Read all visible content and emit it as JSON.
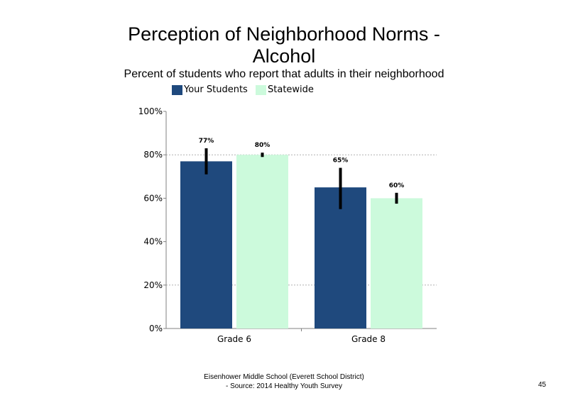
{
  "slide": {
    "title_line1": "Perception of Neighborhood Norms -",
    "title_line2": "Alcohol",
    "subtitle": "Percent of students who report that adults in their neighborhood",
    "footer_line1": "Eisenhower Middle School (Everett School District)",
    "footer_line2": "- Source: 2014 Healthy  Youth Survey",
    "page_number": "45"
  },
  "chart_data": {
    "type": "bar",
    "title": "Perception of Neighborhood Norms - Alcohol",
    "subtitle": "Percent of students who report that adults in their neighborhood",
    "categories": [
      "Grade 6",
      "Grade 8"
    ],
    "series": [
      {
        "name": "Your Students",
        "color": "#1f497d",
        "values": [
          77,
          65
        ],
        "labels": [
          "77%",
          "65%"
        ],
        "error_low": [
          71,
          55
        ],
        "error_high": [
          83,
          74
        ]
      },
      {
        "name": "Statewide",
        "color": "#ccfadc",
        "values": [
          80,
          60
        ],
        "labels": [
          "80%",
          "60%"
        ],
        "error_low": [
          79,
          57.5
        ],
        "error_high": [
          81,
          62.5
        ]
      }
    ],
    "ylim": [
      0,
      100
    ],
    "yticks": [
      0,
      20,
      40,
      60,
      80,
      100
    ],
    "ytick_labels": [
      "0%",
      "20%",
      "40%",
      "60%",
      "80%",
      "100%"
    ],
    "grid": "dashed horizontal at 20% and 80%",
    "legend": "top-left",
    "error_bar_color": "#000000"
  }
}
